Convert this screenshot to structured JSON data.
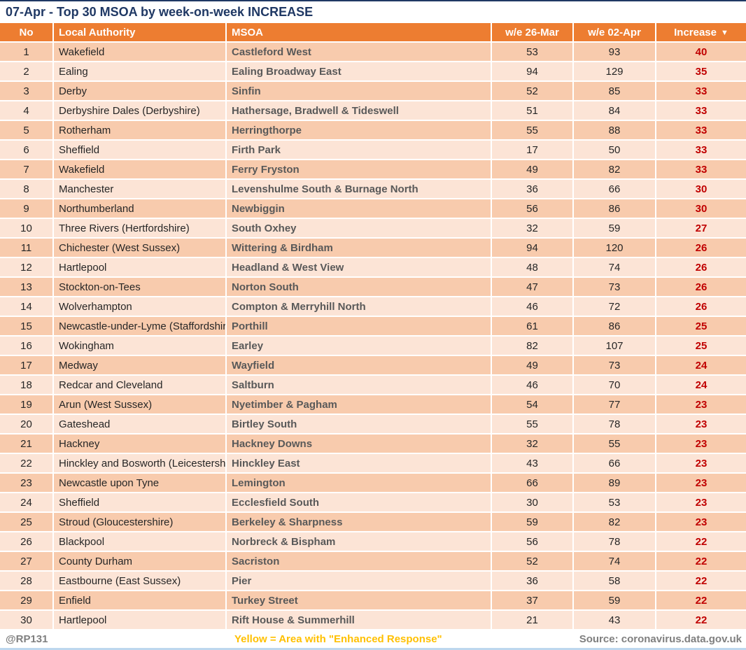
{
  "title": "07-Apr - Top 30 MSOA by week-on-week INCREASE",
  "table": {
    "columns": {
      "no": "No",
      "local_authority": "Local Authority",
      "msoa": "MSOA",
      "week1": "w/e 26-Mar",
      "week2": "w/e 02-Apr",
      "increase": "Increase"
    },
    "sort_icon": "▼",
    "rows": [
      {
        "no": "1",
        "la": "Wakefield",
        "msoa": "Castleford West",
        "we1": "53",
        "we2": "93",
        "inc": "40"
      },
      {
        "no": "2",
        "la": "Ealing",
        "msoa": "Ealing Broadway East",
        "we1": "94",
        "we2": "129",
        "inc": "35"
      },
      {
        "no": "3",
        "la": "Derby",
        "msoa": "Sinfin",
        "we1": "52",
        "we2": "85",
        "inc": "33"
      },
      {
        "no": "4",
        "la": "Derbyshire Dales (Derbyshire)",
        "msoa": "Hathersage, Bradwell & Tideswell",
        "we1": "51",
        "we2": "84",
        "inc": "33"
      },
      {
        "no": "5",
        "la": "Rotherham",
        "msoa": "Herringthorpe",
        "we1": "55",
        "we2": "88",
        "inc": "33"
      },
      {
        "no": "6",
        "la": "Sheffield",
        "msoa": "Firth Park",
        "we1": "17",
        "we2": "50",
        "inc": "33"
      },
      {
        "no": "7",
        "la": "Wakefield",
        "msoa": "Ferry Fryston",
        "we1": "49",
        "we2": "82",
        "inc": "33"
      },
      {
        "no": "8",
        "la": "Manchester",
        "msoa": "Levenshulme South & Burnage North",
        "we1": "36",
        "we2": "66",
        "inc": "30"
      },
      {
        "no": "9",
        "la": "Northumberland",
        "msoa": "Newbiggin",
        "we1": "56",
        "we2": "86",
        "inc": "30"
      },
      {
        "no": "10",
        "la": "Three Rivers (Hertfordshire)",
        "msoa": "South Oxhey",
        "we1": "32",
        "we2": "59",
        "inc": "27"
      },
      {
        "no": "11",
        "la": "Chichester (West Sussex)",
        "msoa": "Wittering & Birdham",
        "we1": "94",
        "we2": "120",
        "inc": "26"
      },
      {
        "no": "12",
        "la": "Hartlepool",
        "msoa": "Headland & West View",
        "we1": "48",
        "we2": "74",
        "inc": "26"
      },
      {
        "no": "13",
        "la": "Stockton-on-Tees",
        "msoa": "Norton South",
        "we1": "47",
        "we2": "73",
        "inc": "26"
      },
      {
        "no": "14",
        "la": "Wolverhampton",
        "msoa": "Compton & Merryhill North",
        "we1": "46",
        "we2": "72",
        "inc": "26"
      },
      {
        "no": "15",
        "la": "Newcastle-under-Lyme (Staffordshire)",
        "msoa": "Porthill",
        "we1": "61",
        "we2": "86",
        "inc": "25"
      },
      {
        "no": "16",
        "la": "Wokingham",
        "msoa": "Earley",
        "we1": "82",
        "we2": "107",
        "inc": "25"
      },
      {
        "no": "17",
        "la": "Medway",
        "msoa": "Wayfield",
        "we1": "49",
        "we2": "73",
        "inc": "24"
      },
      {
        "no": "18",
        "la": "Redcar and Cleveland",
        "msoa": "Saltburn",
        "we1": "46",
        "we2": "70",
        "inc": "24"
      },
      {
        "no": "19",
        "la": "Arun (West Sussex)",
        "msoa": "Nyetimber & Pagham",
        "we1": "54",
        "we2": "77",
        "inc": "23"
      },
      {
        "no": "20",
        "la": "Gateshead",
        "msoa": "Birtley South",
        "we1": "55",
        "we2": "78",
        "inc": "23"
      },
      {
        "no": "21",
        "la": "Hackney",
        "msoa": "Hackney Downs",
        "we1": "32",
        "we2": "55",
        "inc": "23"
      },
      {
        "no": "22",
        "la": "Hinckley and Bosworth (Leicestershire)",
        "msoa": "Hinckley East",
        "we1": "43",
        "we2": "66",
        "inc": "23"
      },
      {
        "no": "23",
        "la": "Newcastle upon Tyne",
        "msoa": "Lemington",
        "we1": "66",
        "we2": "89",
        "inc": "23"
      },
      {
        "no": "24",
        "la": "Sheffield",
        "msoa": "Ecclesfield South",
        "we1": "30",
        "we2": "53",
        "inc": "23"
      },
      {
        "no": "25",
        "la": "Stroud (Gloucestershire)",
        "msoa": "Berkeley & Sharpness",
        "we1": "59",
        "we2": "82",
        "inc": "23"
      },
      {
        "no": "26",
        "la": "Blackpool",
        "msoa": "Norbreck & Bispham",
        "we1": "56",
        "we2": "78",
        "inc": "22"
      },
      {
        "no": "27",
        "la": "County Durham",
        "msoa": "Sacriston",
        "we1": "52",
        "we2": "74",
        "inc": "22"
      },
      {
        "no": "28",
        "la": "Eastbourne (East Sussex)",
        "msoa": "Pier",
        "we1": "36",
        "we2": "58",
        "inc": "22"
      },
      {
        "no": "29",
        "la": "Enfield",
        "msoa": "Turkey Street",
        "we1": "37",
        "we2": "59",
        "inc": "22"
      },
      {
        "no": "30",
        "la": "Hartlepool",
        "msoa": "Rift House & Summerhill",
        "we1": "21",
        "we2": "43",
        "inc": "22"
      }
    ]
  },
  "footer": {
    "handle": "@RP131",
    "note": "Yellow = Area with \"Enhanced Response\"",
    "source": "Source: coronavirus.data.gov.uk"
  },
  "colors": {
    "header_bg": "#ED7D31",
    "row_odd_bg": "#F8CBAD",
    "row_even_bg": "#FCE4D6",
    "increase_text": "#C00000",
    "msoa_text": "#595959",
    "title_text": "#1F3864",
    "footer_gray": "#7F7F7F",
    "note_yellow": "#FFC000"
  },
  "chart_data": {
    "type": "table",
    "title": "07-Apr - Top 30 MSOA by week-on-week INCREASE",
    "columns": [
      "No",
      "Local Authority",
      "MSOA",
      "w/e 26-Mar",
      "w/e 02-Apr",
      "Increase"
    ],
    "sort": {
      "column": "Increase",
      "direction": "descending"
    },
    "rows": [
      [
        1,
        "Wakefield",
        "Castleford West",
        53,
        93,
        40
      ],
      [
        2,
        "Ealing",
        "Ealing Broadway East",
        94,
        129,
        35
      ],
      [
        3,
        "Derby",
        "Sinfin",
        52,
        85,
        33
      ],
      [
        4,
        "Derbyshire Dales (Derbyshire)",
        "Hathersage, Bradwell & Tideswell",
        51,
        84,
        33
      ],
      [
        5,
        "Rotherham",
        "Herringthorpe",
        55,
        88,
        33
      ],
      [
        6,
        "Sheffield",
        "Firth Park",
        17,
        50,
        33
      ],
      [
        7,
        "Wakefield",
        "Ferry Fryston",
        49,
        82,
        33
      ],
      [
        8,
        "Manchester",
        "Levenshulme South & Burnage North",
        36,
        66,
        30
      ],
      [
        9,
        "Northumberland",
        "Newbiggin",
        56,
        86,
        30
      ],
      [
        10,
        "Three Rivers (Hertfordshire)",
        "South Oxhey",
        32,
        59,
        27
      ],
      [
        11,
        "Chichester (West Sussex)",
        "Wittering & Birdham",
        94,
        120,
        26
      ],
      [
        12,
        "Hartlepool",
        "Headland & West View",
        48,
        74,
        26
      ],
      [
        13,
        "Stockton-on-Tees",
        "Norton South",
        47,
        73,
        26
      ],
      [
        14,
        "Wolverhampton",
        "Compton & Merryhill North",
        46,
        72,
        26
      ],
      [
        15,
        "Newcastle-under-Lyme (Staffordshire)",
        "Porthill",
        61,
        86,
        25
      ],
      [
        16,
        "Wokingham",
        "Earley",
        82,
        107,
        25
      ],
      [
        17,
        "Medway",
        "Wayfield",
        49,
        73,
        24
      ],
      [
        18,
        "Redcar and Cleveland",
        "Saltburn",
        46,
        70,
        24
      ],
      [
        19,
        "Arun (West Sussex)",
        "Nyetimber & Pagham",
        54,
        77,
        23
      ],
      [
        20,
        "Gateshead",
        "Birtley South",
        55,
        78,
        23
      ],
      [
        21,
        "Hackney",
        "Hackney Downs",
        32,
        55,
        23
      ],
      [
        22,
        "Hinckley and Bosworth (Leicestershire)",
        "Hinckley East",
        43,
        66,
        23
      ],
      [
        23,
        "Newcastle upon Tyne",
        "Lemington",
        66,
        89,
        23
      ],
      [
        24,
        "Sheffield",
        "Ecclesfield South",
        30,
        53,
        23
      ],
      [
        25,
        "Stroud (Gloucestershire)",
        "Berkeley & Sharpness",
        59,
        82,
        23
      ],
      [
        26,
        "Blackpool",
        "Norbreck & Bispham",
        56,
        78,
        22
      ],
      [
        27,
        "County Durham",
        "Sacriston",
        52,
        74,
        22
      ],
      [
        28,
        "Eastbourne (East Sussex)",
        "Pier",
        36,
        58,
        22
      ],
      [
        29,
        "Enfield",
        "Turkey Street",
        37,
        59,
        22
      ],
      [
        30,
        "Hartlepool",
        "Rift House & Summerhill",
        21,
        43,
        22
      ]
    ]
  }
}
